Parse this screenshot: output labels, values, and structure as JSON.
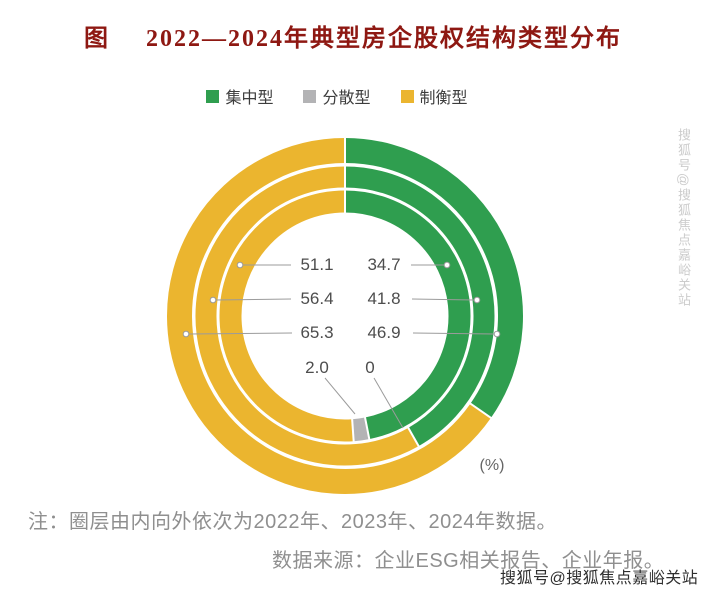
{
  "title": {
    "prefix": "图",
    "text": "2022—2024年典型房企股权结构类型分布"
  },
  "legend": [
    {
      "label": "集中型",
      "color": "#2f9e4f"
    },
    {
      "label": "分散型",
      "color": "#b3b3b5"
    },
    {
      "label": "制衡型",
      "color": "#ebb52f"
    }
  ],
  "chart_data": {
    "type": "donut-multi-ring",
    "unit": "(%)",
    "categories": [
      "集中型",
      "分散型",
      "制衡型"
    ],
    "rings_inner_to_outer": [
      "2022",
      "2023",
      "2024"
    ],
    "series": [
      {
        "year": "2022",
        "ring": "inner",
        "集中型": 46.9,
        "分散型": 2.0,
        "制衡型": 51.1
      },
      {
        "year": "2023",
        "ring": "middle",
        "集中型": 41.8,
        "分散型": 0,
        "制衡型": 56.4
      },
      {
        "year": "2024",
        "ring": "outer",
        "集中型": 34.7,
        "分散型": 0,
        "制衡型": 65.3
      }
    ],
    "labels": {
      "left_column": [
        "51.1",
        "56.4",
        "65.3"
      ],
      "right_column": [
        "34.7",
        "41.8",
        "46.9"
      ],
      "bottom_row": [
        "2.0",
        "0"
      ]
    },
    "legend_position": "top",
    "colors": {
      "集中型": "#2f9e4f",
      "分散型": "#b3b3b5",
      "制衡型": "#ebb52f"
    }
  },
  "note": "注：圈层由内向外依次为2022年、2023年、2024年数据。",
  "source": "数据来源：企业ESG相关报告、企业年报。",
  "watermark": "搜狐号@搜狐焦点嘉峪关站"
}
